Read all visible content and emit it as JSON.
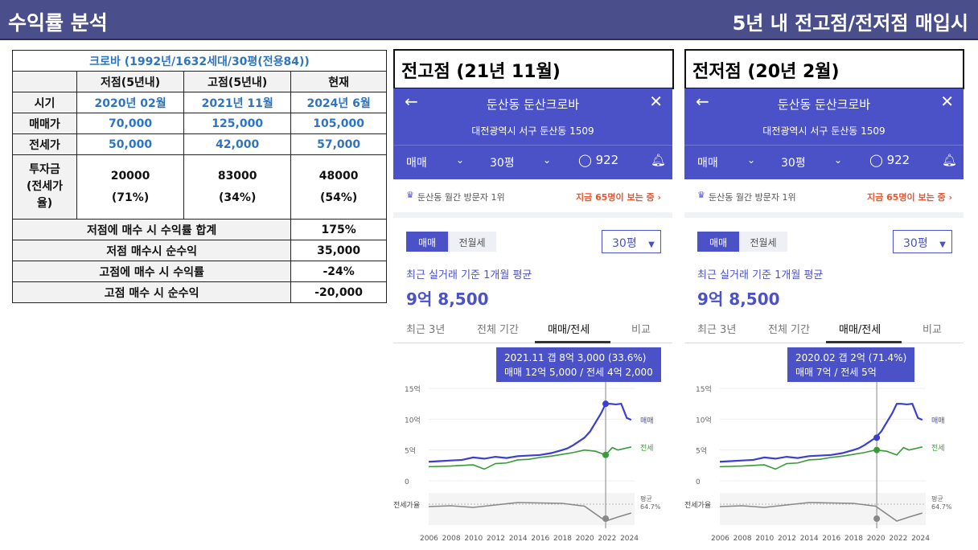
{
  "header": {
    "title": "수익률 분석",
    "subtitle": "5년 내 전고점/전저점 매입시"
  },
  "table": {
    "title": "크로바 (1992년/1632세대/30평(전용84))",
    "col_headers": [
      "저점(5년내)",
      "고점(5년내)",
      "현재"
    ],
    "rows": [
      {
        "label": "시기",
        "values": [
          "2020년 02월",
          "2021년 11월",
          "2024년 6월"
        ]
      },
      {
        "label": "매매가",
        "values": [
          "70,000",
          "125,000",
          "105,000"
        ]
      },
      {
        "label": "전세가",
        "values": [
          "50,000",
          "42,000",
          "57,000"
        ]
      }
    ],
    "invest": {
      "label_line1": "투자금",
      "label_line2": "(전세가",
      "label_line3": "율)",
      "values": [
        "20000",
        "83000",
        "48000"
      ],
      "ratios": [
        "(71%)",
        "(34%)",
        "(54%)"
      ]
    },
    "summary": [
      {
        "label": "저점에 매수 시 수익률 합계",
        "value": "175%"
      },
      {
        "label": "저점 매수시 순수익",
        "value": "35,000"
      },
      {
        "label": "고점에 매수 시 수익률",
        "value": "-24%"
      },
      {
        "label": "고점 매수 시 순수익",
        "value": "-20,000"
      }
    ]
  },
  "panels": [
    {
      "label": "전고점 (21년 11월)",
      "title": "둔산동 둔산크로바",
      "address": "대전광역시 서구 둔산동 1509",
      "deal": "매매",
      "size": "30평",
      "comments": "922",
      "rank_text": "둔산동 월간 방문자 1위",
      "now_viewing": "지금 65명이 보는 중 ›",
      "toggle_on": "매매",
      "toggle_off": "전월세",
      "select": "30평",
      "avg_label": "최근 실거래 기준 1개월 평균",
      "price": "9억 8,500",
      "tabs": [
        "최근 3년",
        "전체 기간",
        "매매/전세",
        "비교"
      ],
      "tooltip_line1": "2021.11  갭 8억 3,000 (33.6%)",
      "tooltip_line2": "매매 12억 5,000 / 전세 4억 2,000",
      "marker_year": 2021.9,
      "marker_sale": 12.5,
      "marker_jeonse": 4.2
    },
    {
      "label": "전저점 (20년 2월)",
      "title": "둔산동 둔산크로바",
      "address": "대전광역시 서구 둔산동 1509",
      "deal": "매매",
      "size": "30평",
      "comments": "922",
      "rank_text": "둔산동 월간 방문자 1위",
      "now_viewing": "지금 65명이 보는 중 ›",
      "toggle_on": "매매",
      "toggle_off": "전월세",
      "select": "30평",
      "avg_label": "최근 실거래 기준 1개월 평균",
      "price": "9억 8,500",
      "tabs": [
        "최근 3년",
        "전체 기간",
        "매매/전세",
        "비교"
      ],
      "tooltip_line1": "2020.02  갭 2억 (71.4%)",
      "tooltip_line2": "매매 7억 / 전세 5억",
      "marker_year": 2020.1,
      "marker_sale": 7.0,
      "marker_jeonse": 5.0
    }
  ],
  "colors": {
    "accent": "#4b52c8",
    "sale": "#3a3fd0",
    "jeonse": "#3a9a3a",
    "ratio": "#888888"
  },
  "chart_data": {
    "type": "line",
    "y_ticks": [
      "15억",
      "10억",
      "5억",
      "0"
    ],
    "x_ticks": [
      "2006",
      "2008",
      "2010",
      "2012",
      "2014",
      "2016",
      "2018",
      "2020",
      "2022",
      "2024"
    ],
    "ylim": [
      0,
      15
    ],
    "xlim": [
      2006,
      2024.5
    ],
    "ratio_label": "전세가율",
    "ratio_avg_label": "평균",
    "ratio_avg_value": "64.7%",
    "series": [
      {
        "name": "매매",
        "x": [
          2006,
          2007,
          2008,
          2009,
          2010,
          2011,
          2012,
          2013,
          2014,
          2015,
          2016,
          2017,
          2018,
          2018.5,
          2019,
          2019.5,
          2020,
          2020.5,
          2021,
          2021.5,
          2021.9,
          2022.3,
          2022.8,
          2023.3,
          2023.8,
          2024.2
        ],
        "values": [
          3.1,
          3.2,
          3.3,
          3.4,
          3.8,
          3.6,
          3.9,
          3.7,
          4.0,
          4.1,
          4.2,
          4.5,
          5.0,
          5.3,
          5.8,
          6.4,
          7.0,
          8.0,
          9.5,
          11.0,
          12.5,
          12.5,
          12.4,
          12.5,
          10.2,
          9.9
        ]
      },
      {
        "name": "전세",
        "x": [
          2006,
          2008,
          2010,
          2011,
          2012,
          2013,
          2014,
          2015,
          2016,
          2017,
          2018,
          2019,
          2020,
          2021,
          2021.9,
          2022.5,
          2023,
          2024.2
        ],
        "values": [
          2.3,
          2.4,
          2.6,
          1.9,
          2.8,
          2.9,
          3.4,
          3.5,
          3.8,
          4.0,
          4.3,
          4.6,
          5.0,
          4.8,
          4.2,
          5.4,
          5.0,
          5.5
        ]
      },
      {
        "name": "전세가율",
        "x": [
          2006,
          2008,
          2010,
          2012,
          2014,
          2016,
          2018,
          2020,
          2021.9,
          2023,
          2024.2
        ],
        "values": [
          70,
          72,
          68,
          74,
          80,
          79,
          78,
          71,
          34,
          44,
          54
        ]
      }
    ]
  }
}
